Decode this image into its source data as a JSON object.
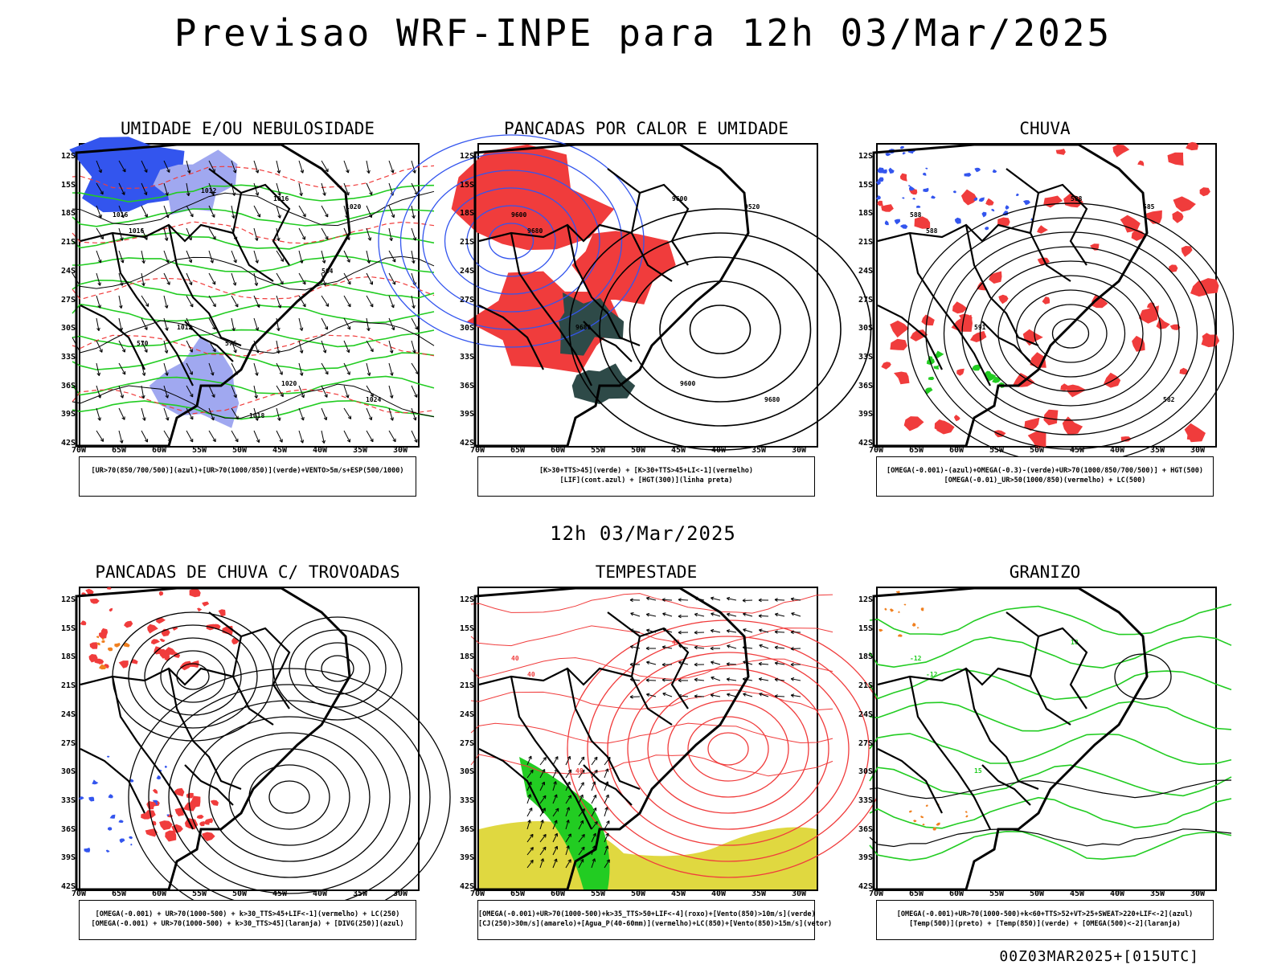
{
  "title": "Previsao WRF-INPE  para 12h 03/Mar/2025",
  "subtitle": "12h 03/Mar/2025",
  "footer": "00Z03MAR2025+[015UTC]",
  "lat_labels": [
    "12S",
    "15S",
    "18S",
    "21S",
    "24S",
    "27S",
    "30S",
    "33S",
    "36S",
    "39S",
    "42S"
  ],
  "lon_labels": [
    "70W",
    "65W",
    "60W",
    "55W",
    "50W",
    "45W",
    "40W",
    "35W",
    "30W"
  ],
  "panels": [
    {
      "title": "UMIDADE E/OU NEBULOSIDADE",
      "legend": [
        "[UR>70(850/700/500)](azul)+[UR>70(1000/850)](verde)+VENTO>5m/s+ESP(500/1000)"
      ],
      "map_labels": [
        "1016",
        "1016",
        "1012",
        "1016",
        "1020",
        "1024",
        "1020",
        "576",
        "570",
        "564",
        "1018",
        "1012"
      ]
    },
    {
      "title": "PANCADAS POR CALOR E UMIDADE",
      "legend": [
        "[K>30+TTS>45](verde) + [K>30+TTS>45+LI<-1](vermelho)",
        "[LIF](cont.azul) + [HGT(300)](linha preta)"
      ],
      "map_labels": [
        "9600",
        "9680",
        "9680",
        "9600",
        "9520",
        "9680",
        "9600"
      ]
    },
    {
      "title": "CHUVA",
      "legend": [
        "[OMEGA(-0.001)-(azul)+OMEGA(-0.3)-(verde)+UR>70(1000/850/700/500)] + HGT(500)",
        "[OMEGA(-0.01)_UR>50(1000/850)(vermelho) + LC(500)"
      ],
      "map_labels": [
        "588",
        "588",
        "591",
        "588",
        "585",
        "582"
      ]
    },
    {
      "title": "PANCADAS DE CHUVA C/ TROVOADAS",
      "legend": [
        "[OMEGA(-0.001) + UR>70(1000-500) + k>30_TTS>45+LIF<-1](vermelho) + LC(250)",
        "[OMEGA(-0.001) + UR>70(1000-500) + k>30_TTS>45](laranja) + [DIVG(250)](azul)"
      ],
      "map_labels": []
    },
    {
      "title": "TEMPESTADE",
      "legend": [
        "[OMEGA(-0.001)+UR>70(1000-500)+k>35_TTS>50+LIF<-4](roxo)+[Vento(850)>10m/s](verde)",
        "[CJ(250)>30m/s](amarelo)+[Agua_P(40-60mm)](vermelho)+LC(850)+[Vento(850)>15m/s](vetor)"
      ],
      "map_labels": [
        "40",
        "40",
        "40",
        "40"
      ]
    },
    {
      "title": "GRANIZO",
      "legend": [
        "[OMEGA(-0.001)+UR>70(1000-500)+k<60+TTS>52+VT>25+SWEAT>220+LIF<-2](azul)",
        "[Temp(500)](preto) + [Temp(850)](verde) + [OMEGA(500)<-2](laranja)"
      ],
      "map_labels": [
        "-12",
        "-12",
        "15",
        "18"
      ]
    }
  ],
  "colors": {
    "red": "#f03c3c",
    "green": "#22cc22",
    "blue": "#3355ee",
    "lightblue": "#a0a8f0",
    "darkteal": "#2e4a48",
    "yellow": "#e0d840",
    "orange": "#f08020"
  }
}
